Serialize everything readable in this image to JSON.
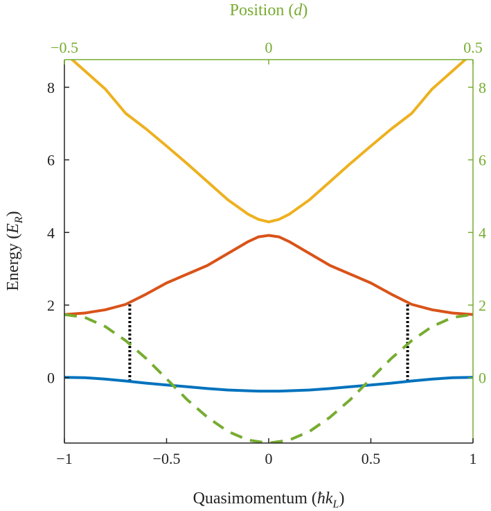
{
  "chart_data": {
    "type": "line",
    "xlabel": "Quasimomentum (ħk_L)",
    "xlabel_parts": {
      "main": "Quasimomentum (",
      "sym": "ħk",
      "sub": "L",
      "close": ")"
    },
    "ylabel": "Energy (E_R)",
    "ylabel_parts": {
      "main": "Energy (",
      "sym": "E",
      "sub": "R",
      "close": ")"
    },
    "top_xlabel": "Position (d)",
    "top_xlabel_parts": {
      "main": "Position (",
      "sym": "d",
      "close": ")"
    },
    "xlim": [
      -1,
      1
    ],
    "ylim": [
      -1.8,
      8.76
    ],
    "top_xlim": [
      -0.5,
      0.5
    ],
    "right_ylim": [
      -1.8,
      8.76
    ],
    "grid": false,
    "x_ticks": [
      "−1",
      "−0.5",
      "0",
      "0.5",
      "1"
    ],
    "x_tick_values": [
      -1,
      -0.5,
      0,
      0.5,
      1
    ],
    "y_ticks": [
      "0",
      "2",
      "4",
      "6",
      "8"
    ],
    "y_tick_values": [
      0,
      2,
      4,
      6,
      8
    ],
    "top_x_ticks": [
      "−0.5",
      "0",
      "0.5"
    ],
    "top_x_tick_values": [
      -0.5,
      0,
      0.5
    ],
    "right_y_ticks": [
      "0",
      "2",
      "4",
      "6",
      "8"
    ],
    "right_y_tick_values": [
      0,
      2,
      4,
      6,
      8
    ],
    "axis_colors": {
      "left_bottom": "#222222",
      "top_right": "#77AC30"
    },
    "x": [
      -1,
      -0.9,
      -0.8,
      -0.7,
      -0.6,
      -0.5,
      -0.4,
      -0.3,
      -0.2,
      -0.1,
      -0.05,
      0,
      0.05,
      0.1,
      0.2,
      0.3,
      0.4,
      0.5,
      0.6,
      0.7,
      0.8,
      0.9,
      1
    ],
    "series": [
      {
        "color": "#0072BD",
        "style": "solid",
        "axis": "bottom-left",
        "values": [
          0.01,
          0.0,
          -0.04,
          -0.09,
          -0.15,
          -0.2,
          -0.25,
          -0.3,
          -0.34,
          -0.36,
          -0.37,
          -0.37,
          -0.37,
          -0.36,
          -0.34,
          -0.3,
          -0.25,
          -0.2,
          -0.15,
          -0.09,
          -0.04,
          0.0,
          0.01
        ]
      },
      {
        "color": "#D95319",
        "style": "solid",
        "axis": "bottom-left",
        "values": [
          1.74,
          1.78,
          1.87,
          2.02,
          2.3,
          2.61,
          2.85,
          3.09,
          3.42,
          3.75,
          3.88,
          3.92,
          3.88,
          3.75,
          3.42,
          3.09,
          2.85,
          2.61,
          2.3,
          2.02,
          1.87,
          1.78,
          1.74
        ]
      },
      {
        "color": "#EDB120",
        "style": "solid",
        "axis": "bottom-left",
        "values": [
          8.95,
          8.45,
          7.95,
          7.28,
          6.85,
          6.38,
          5.9,
          5.4,
          4.9,
          4.5,
          4.36,
          4.29,
          4.36,
          4.5,
          4.9,
          5.4,
          5.9,
          6.38,
          6.85,
          7.28,
          7.95,
          8.45,
          8.95
        ]
      },
      {
        "color": "#77AC30",
        "style": "dashed",
        "axis": "top-right",
        "x": [
          -0.5,
          -0.45,
          -0.4,
          -0.35,
          -0.3,
          -0.25,
          -0.2,
          -0.15,
          -0.1,
          -0.05,
          0,
          0.05,
          0.1,
          0.15,
          0.2,
          0.25,
          0.3,
          0.35,
          0.4,
          0.45,
          0.5
        ],
        "values": [
          1.74,
          1.66,
          1.41,
          1.02,
          0.53,
          -0.03,
          -0.6,
          -1.09,
          -1.48,
          -1.72,
          -1.8,
          -1.72,
          -1.48,
          -1.09,
          -0.6,
          -0.03,
          0.53,
          1.02,
          1.41,
          1.66,
          1.74
        ]
      }
    ],
    "vertical_markers": [
      {
        "x": -0.68,
        "y_from": -0.1,
        "y_to": 2.07,
        "color": "#000000",
        "style": "dotted"
      },
      {
        "x": 0.68,
        "y_from": -0.1,
        "y_to": 2.07,
        "color": "#000000",
        "style": "dotted"
      }
    ]
  }
}
